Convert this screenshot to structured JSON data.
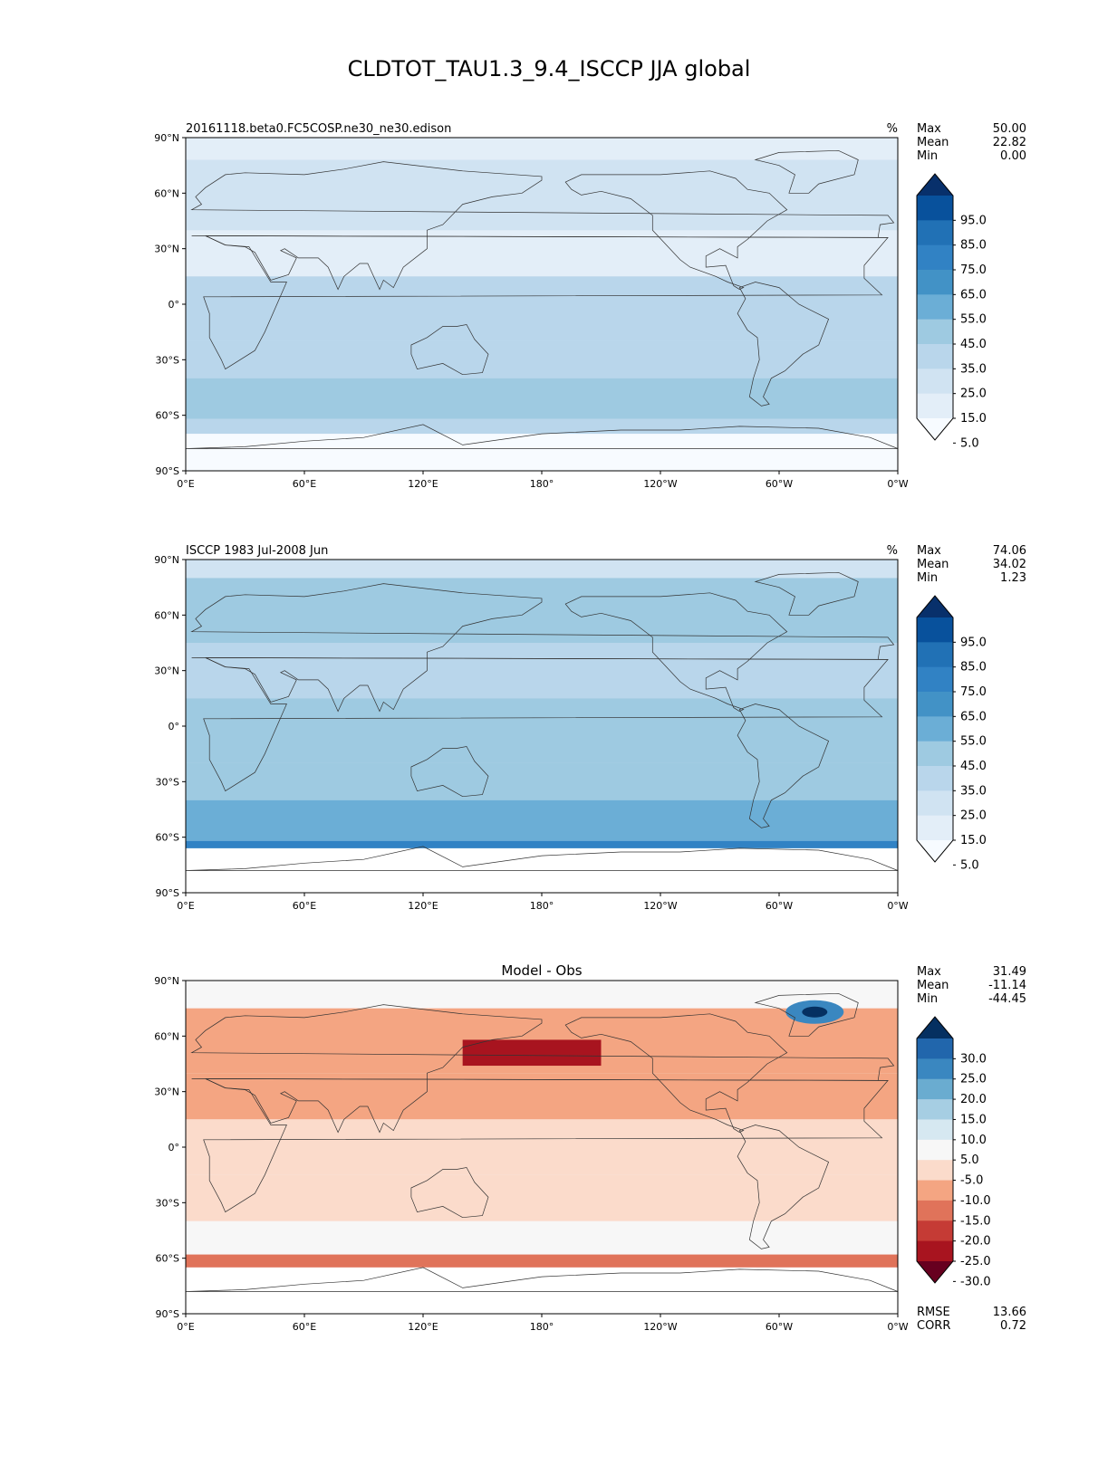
{
  "figure": {
    "title": "CLDTOT_TAU1.3_9.4_ISCCP JJA global"
  },
  "axes": {
    "lon_ticks": [
      "0°E",
      "60°E",
      "120°E",
      "180°",
      "120°W",
      "60°W",
      "0°W"
    ],
    "lat_ticks": [
      "90°N",
      "60°N",
      "30°N",
      "0°",
      "30°S",
      "60°S",
      "90°S"
    ]
  },
  "panels": [
    {
      "id": "test",
      "title_left": "20161118.beta0.FC5COSP.ne30_ne30.edison",
      "title_center": "",
      "units": "%",
      "stats": [
        {
          "label": "Max",
          "value": "50.00"
        },
        {
          "label": "Mean",
          "value": "22.82"
        },
        {
          "label": "Min",
          "value": "0.00"
        }
      ],
      "colorbar": {
        "ticks": [
          "95.0",
          "85.0",
          "75.0",
          "65.0",
          "55.0",
          "45.0",
          "35.0",
          "25.0",
          "15.0",
          "5.0"
        ],
        "colors": [
          "#08306b",
          "#08519c",
          "#2171b5",
          "#3182c4",
          "#4292c6",
          "#6baed6",
          "#9ecae1",
          "#b9d6eb",
          "#d0e3f2",
          "#e3eef8",
          "#f7fbff"
        ]
      }
    },
    {
      "id": "ref",
      "title_left": "ISCCP 1983 Jul-2008 Jun",
      "title_center": "",
      "units": "%",
      "stats": [
        {
          "label": "Max",
          "value": "74.06"
        },
        {
          "label": "Mean",
          "value": "34.02"
        },
        {
          "label": "Min",
          "value": "1.23"
        }
      ],
      "colorbar": {
        "ticks": [
          "95.0",
          "85.0",
          "75.0",
          "65.0",
          "55.0",
          "45.0",
          "35.0",
          "25.0",
          "15.0",
          "5.0"
        ],
        "colors": [
          "#08306b",
          "#08519c",
          "#2171b5",
          "#3182c4",
          "#4292c6",
          "#6baed6",
          "#9ecae1",
          "#b9d6eb",
          "#d0e3f2",
          "#e3eef8",
          "#f7fbff"
        ]
      }
    },
    {
      "id": "diff",
      "title_left": "",
      "title_center": "Model - Obs",
      "units": "",
      "stats": [
        {
          "label": "Max",
          "value": "31.49"
        },
        {
          "label": "Mean",
          "value": "-11.14"
        },
        {
          "label": "Min",
          "value": "-44.45"
        }
      ],
      "bottom_stats": [
        {
          "label": "RMSE",
          "value": "13.66"
        },
        {
          "label": "CORR",
          "value": "0.72"
        }
      ],
      "colorbar": {
        "ticks": [
          "30.0",
          "25.0",
          "20.0",
          "15.0",
          "10.0",
          "5.0",
          "-5.0",
          "-10.0",
          "-15.0",
          "-20.0",
          "-25.0",
          "-30.0"
        ],
        "colors": [
          "#053061",
          "#2166ac",
          "#3a87c0",
          "#6aacd0",
          "#a6cee3",
          "#d6e8f1",
          "#f7f7f7",
          "#fbdbcb",
          "#f4a582",
          "#e0735a",
          "#c53b35",
          "#a8141f",
          "#67001f"
        ]
      }
    }
  ]
}
